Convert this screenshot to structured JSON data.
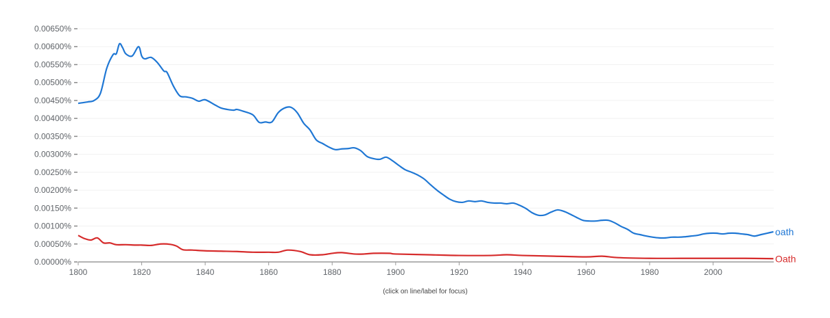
{
  "chart_data": {
    "type": "line",
    "title": "",
    "xlabel": "",
    "ylabel": "",
    "note": "(click on line/label for focus)",
    "xlim": [
      1800,
      2019
    ],
    "ylim": [
      0,
      0.0065
    ],
    "y_unit": "%",
    "grid": true,
    "legend": "inline-right",
    "xticks": [
      1800,
      1820,
      1840,
      1860,
      1880,
      1900,
      1920,
      1940,
      1960,
      1980,
      2000
    ],
    "yticks": [
      "0.00000%",
      "0.00050%",
      "0.00100%",
      "0.00150%",
      "0.00200%",
      "0.00250%",
      "0.00300%",
      "0.00350%",
      "0.00400%",
      "0.00450%",
      "0.00500%",
      "0.00550%",
      "0.00600%",
      "0.00650%"
    ],
    "series": [
      {
        "name": "oath",
        "color": "#1f77d4",
        "x": [
          1800,
          1803,
          1805,
          1807,
          1809,
          1811,
          1812,
          1813,
          1814,
          1815,
          1817,
          1819,
          1820,
          1821,
          1823,
          1825,
          1827,
          1828,
          1830,
          1832,
          1834,
          1836,
          1838,
          1840,
          1843,
          1845,
          1847,
          1849,
          1850,
          1852,
          1855,
          1857,
          1859,
          1861,
          1863,
          1865,
          1867,
          1869,
          1871,
          1873,
          1875,
          1877,
          1879,
          1881,
          1883,
          1885,
          1887,
          1889,
          1891,
          1893,
          1895,
          1897,
          1899,
          1901,
          1903,
          1905,
          1907,
          1909,
          1911,
          1913,
          1915,
          1917,
          1919,
          1921,
          1923,
          1925,
          1927,
          1929,
          1931,
          1933,
          1935,
          1937,
          1939,
          1941,
          1943,
          1945,
          1947,
          1949,
          1951,
          1953,
          1955,
          1957,
          1959,
          1961,
          1963,
          1965,
          1967,
          1969,
          1971,
          1973,
          1975,
          1977,
          1979,
          1981,
          1983,
          1985,
          1987,
          1989,
          1991,
          1993,
          1995,
          1997,
          1999,
          2001,
          2003,
          2005,
          2007,
          2009,
          2011,
          2013,
          2015,
          2017,
          2019
        ],
        "values": [
          0.00442,
          0.00446,
          0.0045,
          0.0047,
          0.0054,
          0.00578,
          0.0058,
          0.00608,
          0.00597,
          0.0058,
          0.00574,
          0.006,
          0.00574,
          0.00566,
          0.0057,
          0.00555,
          0.00532,
          0.00528,
          0.0049,
          0.00463,
          0.0046,
          0.00456,
          0.00448,
          0.00452,
          0.00438,
          0.00429,
          0.00425,
          0.00423,
          0.00425,
          0.0042,
          0.0041,
          0.00389,
          0.0039,
          0.0039,
          0.00416,
          0.00429,
          0.00431,
          0.00416,
          0.00387,
          0.00368,
          0.0034,
          0.0033,
          0.0032,
          0.00313,
          0.00315,
          0.00316,
          0.00318,
          0.0031,
          0.00294,
          0.00288,
          0.00286,
          0.00292,
          0.00282,
          0.00269,
          0.00257,
          0.0025,
          0.00242,
          0.00231,
          0.00215,
          0.002,
          0.00187,
          0.00175,
          0.00168,
          0.00166,
          0.0017,
          0.00168,
          0.0017,
          0.00166,
          0.00164,
          0.00164,
          0.00162,
          0.00164,
          0.00158,
          0.00149,
          0.00137,
          0.0013,
          0.00131,
          0.00139,
          0.00145,
          0.00141,
          0.00133,
          0.00124,
          0.00116,
          0.00114,
          0.00114,
          0.00116,
          0.00116,
          0.00109,
          0.00099,
          0.00091,
          0.0008,
          0.00076,
          0.00072,
          0.00069,
          0.00067,
          0.00067,
          0.00069,
          0.00069,
          0.0007,
          0.00072,
          0.00074,
          0.00078,
          0.0008,
          0.0008,
          0.00078,
          0.0008,
          0.0008,
          0.00078,
          0.00076,
          0.00072,
          0.00076,
          0.0008,
          0.00084
        ]
      },
      {
        "name": "Oath",
        "color": "#d62b2b",
        "x": [
          1800,
          1802,
          1804,
          1806,
          1808,
          1810,
          1812,
          1815,
          1818,
          1820,
          1823,
          1826,
          1829,
          1831,
          1833,
          1836,
          1840,
          1845,
          1850,
          1855,
          1860,
          1863,
          1866,
          1870,
          1873,
          1877,
          1880,
          1883,
          1887,
          1890,
          1893,
          1898,
          1900,
          1910,
          1920,
          1930,
          1935,
          1940,
          1950,
          1960,
          1965,
          1970,
          1980,
          1990,
          2000,
          2010,
          2019
        ],
        "values": [
          0.00074,
          0.00065,
          0.00061,
          0.00067,
          0.00053,
          0.00053,
          0.00048,
          0.00048,
          0.00047,
          0.00047,
          0.00046,
          0.0005,
          0.00049,
          0.00044,
          0.00034,
          0.00033,
          0.00031,
          0.0003,
          0.00029,
          0.00027,
          0.00027,
          0.00027,
          0.00033,
          0.00029,
          0.0002,
          0.0002,
          0.00024,
          0.00026,
          0.00022,
          0.00022,
          0.00024,
          0.00024,
          0.00022,
          0.0002,
          0.00018,
          0.00018,
          0.0002,
          0.00018,
          0.00016,
          0.00014,
          0.00016,
          0.00012,
          0.0001,
          0.0001,
          0.0001,
          0.0001,
          9e-05
        ]
      }
    ]
  }
}
